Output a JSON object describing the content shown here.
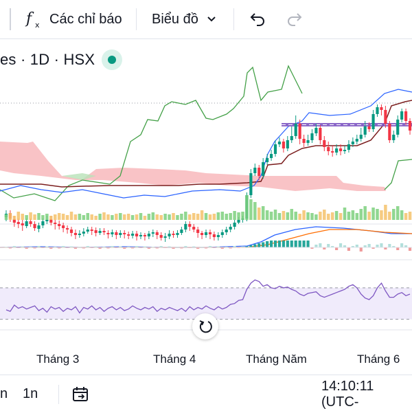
{
  "toolbar": {
    "indicators_label": "Các chỉ báo",
    "chart_type_label": "Biểu đồ",
    "icons": [
      "function-icon",
      "chevron-down-icon",
      "undo-icon",
      "redo-icon"
    ]
  },
  "legend": {
    "symbol_text": "es · 1D · HSX",
    "status_color": "#089981"
  },
  "axis": {
    "months": [
      "Tháng 3",
      "Tháng 4",
      "Tháng Năm",
      "Tháng 6"
    ]
  },
  "bottom_bar": {
    "range_partial": "n",
    "range_1n": "1n",
    "time": "14:10:11 (UTC-"
  },
  "colors": {
    "up": "#089981",
    "down": "#f23645",
    "up_light": "#7ed07e",
    "rsi_line": "#7e57c2",
    "rsi_band": "#f0ebfb",
    "cloud_red": "#f8b4b8",
    "cloud_green": "#b8e2b8"
  },
  "chart_data": {
    "type": "candlestick",
    "candles": [
      [
        260,
        255,
        250,
        266
      ],
      [
        254,
        262,
        250,
        267
      ],
      [
        263,
        268,
        258,
        274
      ],
      [
        267,
        270,
        262,
        276
      ],
      [
        269,
        272,
        264,
        280
      ],
      [
        273,
        266,
        262,
        276
      ],
      [
        266,
        270,
        262,
        274
      ],
      [
        270,
        276,
        266,
        280
      ],
      [
        277,
        272,
        268,
        282
      ],
      [
        272,
        266,
        262,
        276
      ],
      [
        266,
        264,
        258,
        270
      ],
      [
        263,
        268,
        258,
        272
      ],
      [
        268,
        270,
        264,
        278
      ],
      [
        270,
        273,
        265,
        278
      ],
      [
        272,
        276,
        268,
        282
      ],
      [
        276,
        278,
        272,
        284
      ],
      [
        278,
        283,
        274,
        288
      ],
      [
        283,
        286,
        278,
        292
      ],
      [
        286,
        284,
        279,
        290
      ],
      [
        284,
        281,
        276,
        288
      ],
      [
        281,
        278,
        274,
        284
      ],
      [
        278,
        280,
        274,
        286
      ],
      [
        279,
        283,
        275,
        288
      ],
      [
        283,
        280,
        276,
        286
      ],
      [
        280,
        282,
        276,
        286
      ],
      [
        283,
        285,
        279,
        291
      ],
      [
        285,
        282,
        278,
        289
      ],
      [
        282,
        286,
        279,
        292
      ],
      [
        286,
        283,
        279,
        290
      ],
      [
        283,
        285,
        279,
        291
      ],
      [
        285,
        287,
        281,
        292
      ],
      [
        287,
        284,
        280,
        291
      ],
      [
        284,
        288,
        280,
        294
      ],
      [
        288,
        286,
        282,
        292
      ],
      [
        286,
        288,
        283,
        294
      ],
      [
        288,
        284,
        280,
        292
      ],
      [
        284,
        282,
        278,
        289
      ],
      [
        282,
        286,
        279,
        292
      ],
      [
        286,
        290,
        282,
        294
      ],
      [
        290,
        288,
        283,
        296
      ],
      [
        288,
        284,
        279,
        292
      ],
      [
        284,
        286,
        280,
        290
      ],
      [
        286,
        283,
        279,
        290
      ],
      [
        283,
        278,
        274,
        286
      ],
      [
        278,
        270,
        266,
        282
      ],
      [
        270,
        274,
        266,
        280
      ],
      [
        274,
        278,
        270,
        282
      ],
      [
        278,
        283,
        274,
        290
      ],
      [
        283,
        286,
        280,
        292
      ],
      [
        286,
        282,
        278,
        290
      ],
      [
        282,
        285,
        278,
        292
      ],
      [
        285,
        289,
        281,
        294
      ],
      [
        289,
        286,
        282,
        294
      ],
      [
        286,
        282,
        278,
        290
      ],
      [
        282,
        278,
        274,
        286
      ],
      [
        278,
        274,
        270,
        282
      ],
      [
        274,
        268,
        264,
        278
      ],
      [
        268,
        264,
        260,
        270
      ],
      [
        264,
        262,
        258,
        268
      ],
      [
        262,
        228,
        224,
        266
      ],
      [
        228,
        196,
        190,
        232
      ],
      [
        196,
        188,
        182,
        200
      ],
      [
        188,
        200,
        184,
        206
      ],
      [
        200,
        180,
        174,
        204
      ],
      [
        180,
        174,
        168,
        184
      ],
      [
        174,
        168,
        162,
        178
      ],
      [
        168,
        154,
        148,
        172
      ],
      [
        154,
        150,
        144,
        158
      ],
      [
        150,
        160,
        146,
        166
      ],
      [
        160,
        148,
        142,
        164
      ],
      [
        148,
        142,
        128,
        152
      ],
      [
        142,
        124,
        112,
        146
      ],
      [
        124,
        146,
        118,
        154
      ],
      [
        146,
        152,
        140,
        158
      ],
      [
        152,
        148,
        140,
        156
      ],
      [
        148,
        138,
        132,
        152
      ],
      [
        138,
        130,
        124,
        142
      ],
      [
        130,
        148,
        126,
        154
      ],
      [
        148,
        158,
        142,
        164
      ],
      [
        158,
        164,
        150,
        170
      ],
      [
        164,
        166,
        156,
        172
      ],
      [
        166,
        160,
        154,
        170
      ],
      [
        160,
        164,
        154,
        170
      ],
      [
        164,
        162,
        156,
        168
      ],
      [
        162,
        154,
        148,
        166
      ],
      [
        154,
        150,
        144,
        158
      ],
      [
        150,
        146,
        140,
        154
      ],
      [
        146,
        140,
        130,
        150
      ],
      [
        140,
        128,
        120,
        144
      ],
      [
        128,
        132,
        122,
        136
      ],
      [
        132,
        110,
        104,
        136
      ],
      [
        110,
        100,
        96,
        114
      ],
      [
        100,
        104,
        96,
        112
      ],
      [
        104,
        124,
        98,
        130
      ],
      [
        124,
        148,
        120,
        152
      ],
      [
        148,
        140,
        134,
        152
      ],
      [
        140,
        118,
        112,
        144
      ],
      [
        118,
        106,
        102,
        122
      ],
      [
        106,
        120,
        102,
        126
      ],
      [
        120,
        134,
        116,
        140
      ]
    ],
    "volume": [
      8,
      10,
      6,
      12,
      9,
      7,
      11,
      8,
      10,
      7,
      9,
      6,
      8,
      10,
      9,
      7,
      12,
      8,
      9,
      7,
      10,
      8,
      6,
      9,
      11,
      8,
      7,
      9,
      10,
      8,
      9,
      7,
      8,
      10,
      6,
      9,
      11,
      8,
      7,
      9,
      8,
      10,
      7,
      9,
      12,
      8,
      10,
      9,
      14,
      10,
      8,
      9,
      11,
      12,
      9,
      10,
      13,
      11,
      12,
      36,
      30,
      26,
      18,
      20,
      14,
      12,
      15,
      10,
      13,
      11,
      16,
      12,
      9,
      14,
      11,
      10,
      8,
      12,
      15,
      9,
      11,
      13,
      10,
      18,
      12,
      14,
      10,
      16,
      20,
      12,
      18,
      16,
      14,
      22,
      12,
      16,
      20,
      14,
      10,
      12
    ],
    "rsi": [
      42,
      40,
      48,
      44,
      46,
      43,
      45,
      47,
      41,
      44,
      39,
      46,
      43,
      45,
      40,
      44,
      42,
      46,
      38,
      45,
      43,
      47,
      42,
      45,
      40,
      44,
      46,
      42,
      45,
      41,
      43,
      47,
      44,
      42,
      45,
      43,
      46,
      40,
      44,
      42,
      45,
      43,
      41,
      44,
      40,
      46,
      42,
      45,
      43,
      47,
      44,
      42,
      46,
      43,
      45,
      49,
      50,
      54,
      55,
      68,
      76,
      80,
      78,
      72,
      74,
      70,
      69,
      72,
      70,
      71,
      68,
      66,
      62,
      60,
      63,
      64,
      65,
      60,
      58,
      60,
      62,
      64,
      66,
      68,
      72,
      74,
      70,
      62,
      57,
      55,
      60,
      70,
      76,
      66,
      58,
      58,
      62,
      64,
      60,
      62
    ],
    "rsi_ylim": [
      20,
      90
    ]
  }
}
